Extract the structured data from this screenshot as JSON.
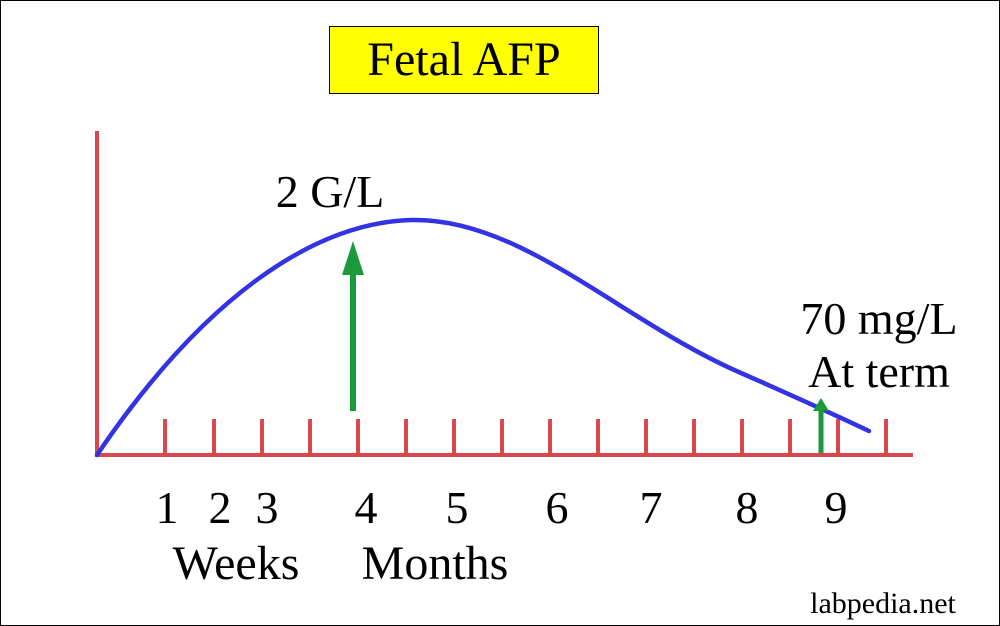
{
  "title": "Fetal AFP",
  "peak_label": "2 G/L",
  "term_label_line1": "70 mg/L",
  "term_label_line2": "At term",
  "week_labels": [
    "1",
    "2",
    "3"
  ],
  "month_labels": [
    "4",
    "5",
    "6",
    "7",
    "8",
    "9"
  ],
  "weeks_caption": "Weeks",
  "months_caption": "Months",
  "watermark": "labpedia.net",
  "colors": {
    "axis": "#d9474f",
    "curve": "#3333e6",
    "arrow": "#1a9a3a",
    "title_bg": "#ffff00"
  }
}
